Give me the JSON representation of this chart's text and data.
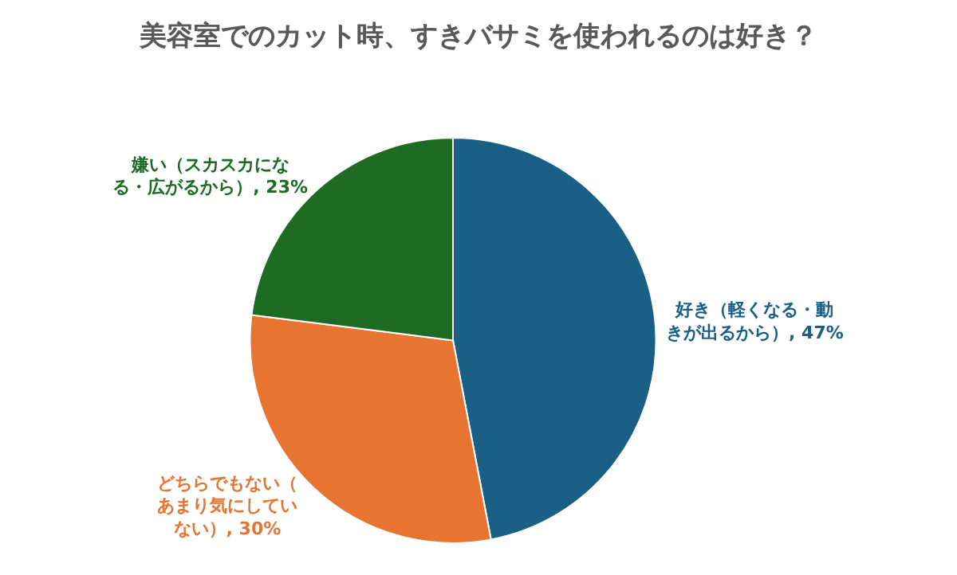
{
  "chart_data": {
    "type": "pie",
    "title": "美容室でのカット時、すきバサミを使われるのは好き？",
    "categories": [
      "好き（軽くなる・動きが出るから）",
      "どちらでもない（あまり気にしていない）",
      "嫌い（スカスカになる・広がるから）"
    ],
    "values": [
      47,
      30,
      23
    ],
    "colors": [
      "#1a5f85",
      "#e87432",
      "#1e6b24"
    ],
    "value_labels": [
      "47%",
      "30%",
      "23%"
    ],
    "legend": false
  }
}
